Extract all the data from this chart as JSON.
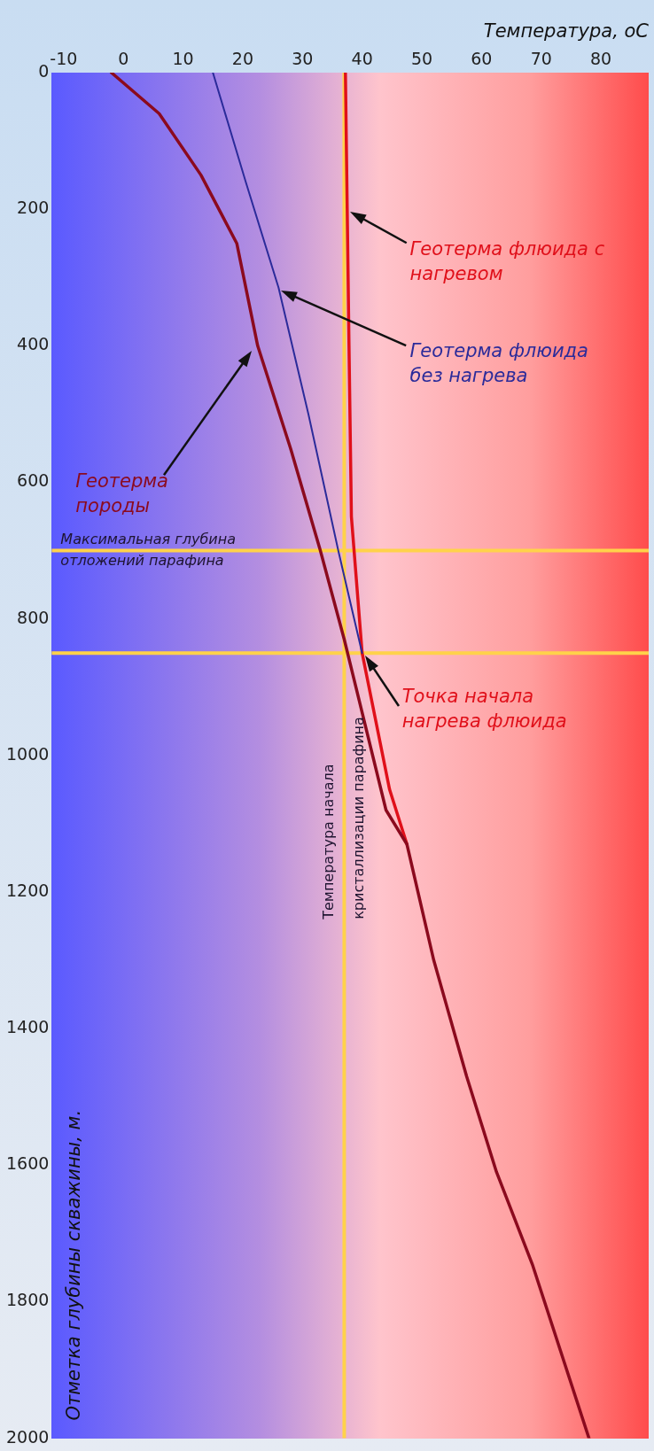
{
  "chart_data": {
    "type": "line",
    "xlabel": "Температура, оС",
    "ylabel": "Отметка глубины скважины, м.",
    "xlim": [
      -12,
      88
    ],
    "xticks": [
      -10,
      0,
      10,
      20,
      30,
      40,
      50,
      60,
      70,
      80
    ],
    "ylim": [
      2000,
      0
    ],
    "yticks": [
      0,
      200,
      400,
      600,
      800,
      1000,
      1200,
      1400,
      1600,
      1800,
      2000
    ],
    "legend": false,
    "series": [
      {
        "name": "Геотерма породы",
        "color": "#8b0a1e",
        "x": [
          -2,
          6,
          13,
          19,
          22.5,
          28,
          33,
          37,
          44,
          47.5,
          52,
          57.5,
          62.5,
          68.5,
          78
        ],
        "values": [
          0,
          60,
          150,
          250,
          400,
          550,
          700,
          830,
          1080,
          1130,
          1300,
          1470,
          1610,
          1745,
          2000
        ]
      },
      {
        "name": "Геотерма флюида без нагрева",
        "color": "#2b2b9a",
        "x": [
          15,
          20.5,
          26,
          31,
          36,
          40
        ],
        "values": [
          0,
          160,
          315,
          500,
          700,
          850
        ]
      },
      {
        "name": "Геотерма флюида с нагревом",
        "color": "#e0101a",
        "x": [
          37.2,
          37.5,
          37.8,
          38.2,
          40,
          44.6,
          47.5
        ],
        "values": [
          0,
          200,
          400,
          650,
          850,
          1050,
          1130
        ]
      }
    ],
    "ref_lines": [
      {
        "axis": "x",
        "value": 37,
        "label": "Температура начала кристаллизации парафина",
        "color": "#ffd24a"
      },
      {
        "axis": "y",
        "value": 700,
        "label": "Максимальная глубина отложений парафина",
        "color": "#ffd24a"
      },
      {
        "axis": "y",
        "value": 850,
        "color": "#ffd24a"
      }
    ],
    "annotations": [
      {
        "text": "Точка начала нагрева флюида",
        "x": 40,
        "y": 850
      }
    ]
  }
}
